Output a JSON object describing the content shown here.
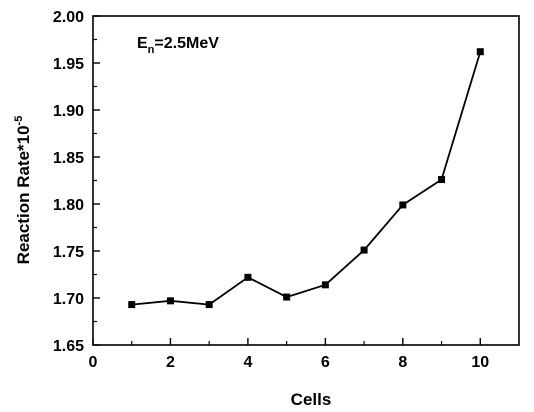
{
  "chart_data": {
    "type": "line",
    "xlabel": "Cells",
    "ylabel": "Reaction Rate*10",
    "ylabel_superscript": "-5",
    "annotation": {
      "prefix": "E",
      "subscript": "n",
      "suffix": "=2.5MeV"
    },
    "xlim": [
      0,
      11
    ],
    "ylim": [
      1.65,
      2.0
    ],
    "xticks": [
      0,
      2,
      4,
      6,
      8,
      10
    ],
    "yticks": [
      1.65,
      1.7,
      1.75,
      1.8,
      1.85,
      1.9,
      1.95,
      2.0
    ],
    "xtick_labels": [
      "0",
      "2",
      "4",
      "6",
      "8",
      "10"
    ],
    "ytick_labels": [
      "1.65",
      "1.70",
      "1.75",
      "1.80",
      "1.85",
      "1.90",
      "1.95",
      "2.00"
    ],
    "grid": false,
    "series": [
      {
        "marker": "square",
        "color": "#000000",
        "x": [
          1,
          2,
          3,
          4,
          5,
          6,
          7,
          8,
          9,
          10
        ],
        "y": [
          1.693,
          1.697,
          1.693,
          1.722,
          1.701,
          1.714,
          1.751,
          1.799,
          1.826,
          1.962
        ]
      }
    ]
  }
}
